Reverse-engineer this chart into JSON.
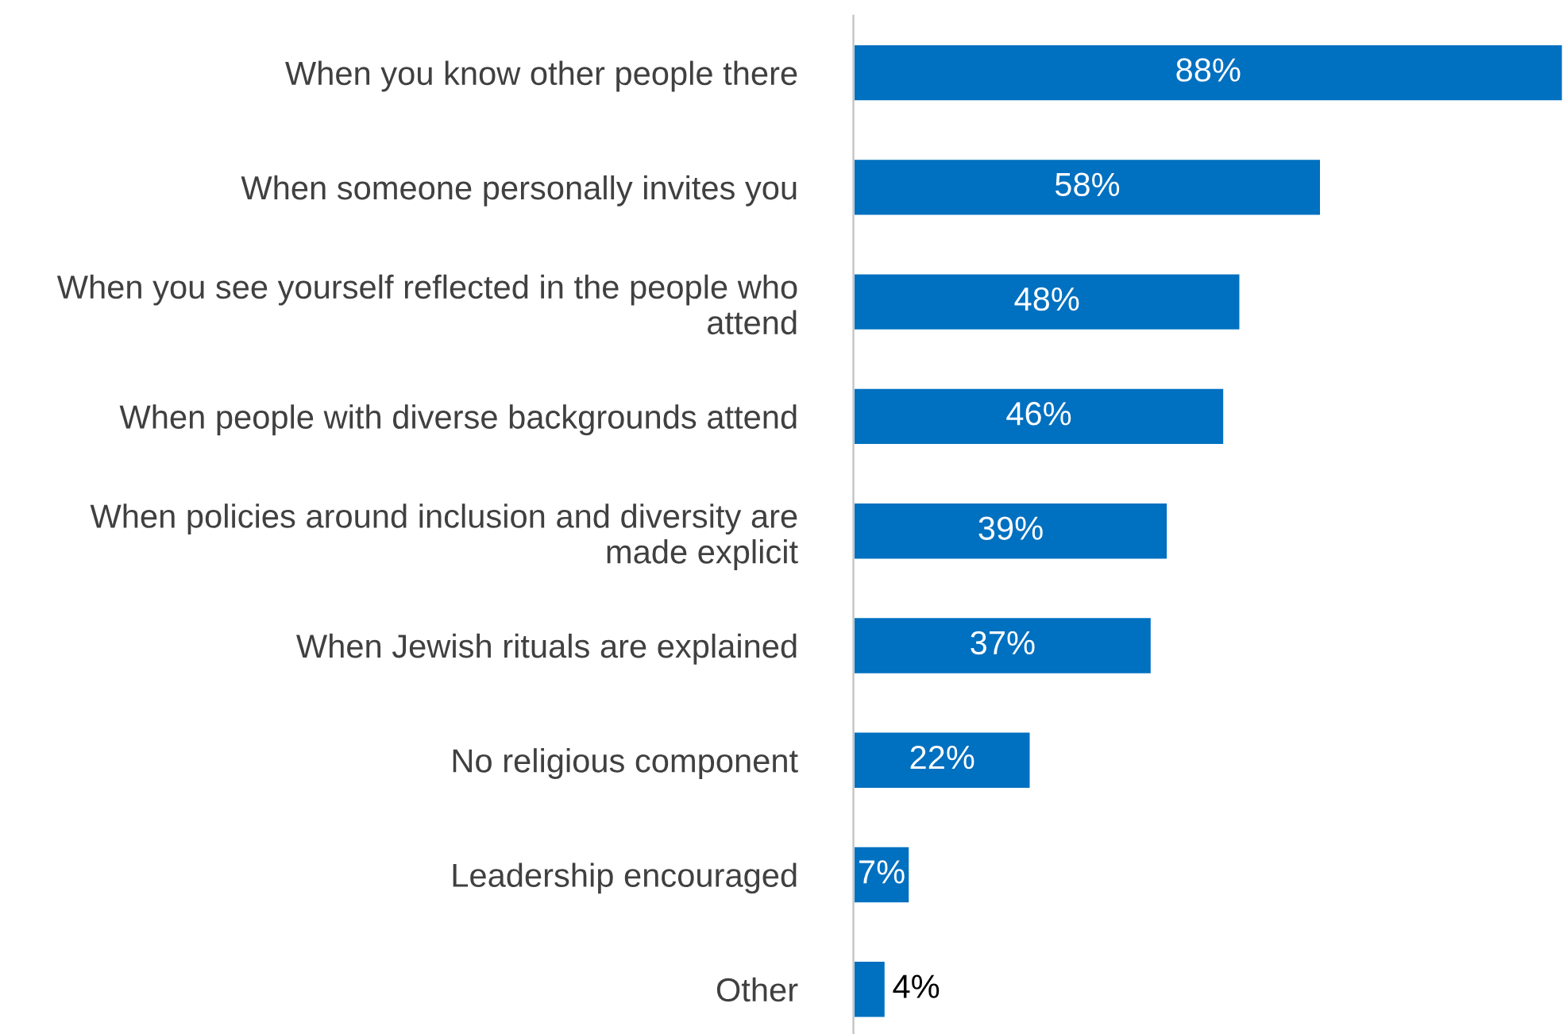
{
  "chart_data": {
    "type": "bar",
    "orientation": "horizontal",
    "categories": [
      "When you know other people there",
      "When someone personally invites you",
      "When you see yourself reflected in the people who attend",
      "When people with diverse backgrounds attend",
      "When policies around inclusion and diversity are made explicit",
      "When Jewish rituals are explained",
      "No religious component",
      "Leadership encouraged",
      "Other"
    ],
    "values": [
      88,
      58,
      48,
      46,
      39,
      37,
      22,
      7,
      4
    ],
    "value_labels": [
      "88%",
      "58%",
      "48%",
      "46%",
      "39%",
      "37%",
      "22%",
      "7%",
      "4%"
    ],
    "color": "#0070c0",
    "xlim": [
      0,
      88
    ],
    "tick_labels": "y",
    "grid": false,
    "legend": false
  }
}
